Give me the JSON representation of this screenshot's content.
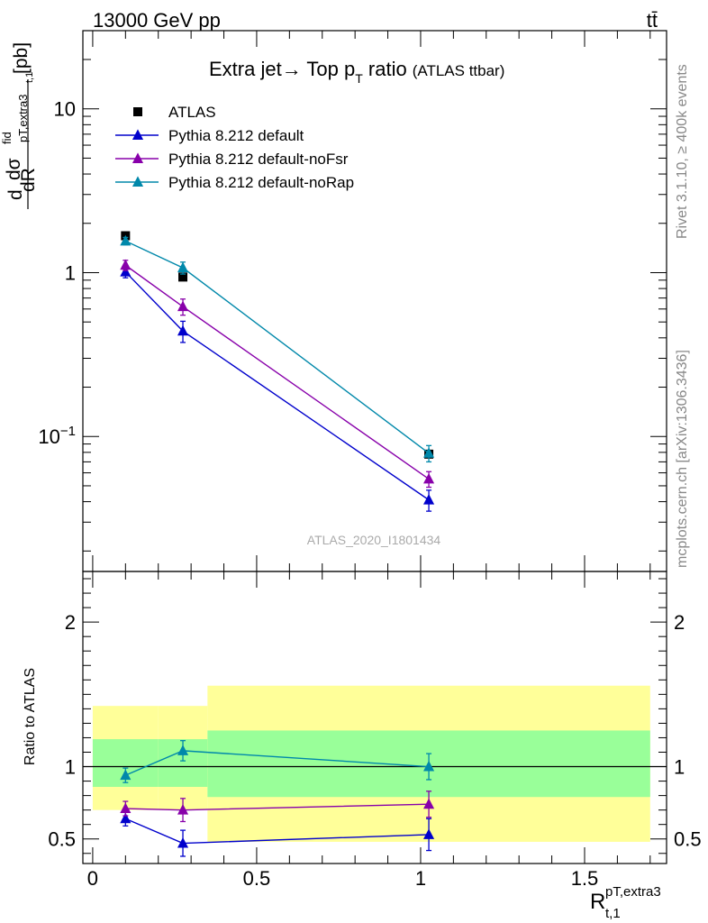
{
  "header": {
    "left": "13000 GeV pp",
    "right": "tt̄"
  },
  "side_labels": {
    "rivet": "Rivet 3.1.10, ≥ 400k events",
    "mcplots": "mcplots.cern.ch [arXiv:1306.3436]"
  },
  "chart_data": [
    {
      "type": "line",
      "panel": "main",
      "title": "Extra jet→ Top p",
      "title_sub": "T",
      "title_tail": " ratio",
      "title_suffix": "(ATLAS ttbar)",
      "watermark": "ATLAS_2020_I1801434",
      "ylabel": "dσ/dR [pb]",
      "ylabel_parts": {
        "d": "d",
        "sigma": "dσ",
        "fid": "fid",
        "sub": "pT,extra3",
        "sub2": "t,1",
        "unit": "[pb]",
        "dR": "dR"
      },
      "yscale": "log",
      "ylim": [
        0.015,
        30
      ],
      "xlim": [
        -0.03,
        1.75
      ],
      "yticks": [
        {
          "value": 10,
          "label": "10",
          "sup": ""
        },
        {
          "value": 1,
          "label": "1",
          "sup": ""
        },
        {
          "value": 0.1,
          "label": "10",
          "sup": "−1"
        }
      ],
      "series": [
        {
          "name": "ATLAS",
          "color": "#000000",
          "marker": "square",
          "x": [
            0.1,
            0.275,
            1.025
          ],
          "y": [
            1.68,
            0.94,
            0.078
          ],
          "err": [
            0.0,
            0.0,
            0.0
          ]
        },
        {
          "name": "Pythia 8.212 default",
          "color": "#0000cc",
          "marker": "triangle",
          "x": [
            0.1,
            0.275,
            1.025
          ],
          "y": [
            1.01,
            0.44,
            0.041
          ],
          "err": [
            0.08,
            0.065,
            0.006
          ]
        },
        {
          "name": "Pythia 8.212 default-noFsr",
          "color": "#8800aa",
          "marker": "triangle",
          "x": [
            0.1,
            0.275,
            1.025
          ],
          "y": [
            1.11,
            0.62,
            0.055
          ],
          "err": [
            0.08,
            0.07,
            0.006
          ]
        },
        {
          "name": "Pythia 8.212 default-noRap",
          "color": "#0088aa",
          "marker": "triangle",
          "x": [
            0.1,
            0.275,
            1.025
          ],
          "y": [
            1.56,
            1.07,
            0.079
          ],
          "err": [
            0.08,
            0.09,
            0.009
          ]
        }
      ]
    },
    {
      "type": "line",
      "panel": "ratio",
      "ylabel": "Ratio to ATLAS",
      "xlabel": "R",
      "xlabel_sup": "pT,extra3",
      "xlabel_sub": "t,1",
      "xlim": [
        -0.03,
        1.75
      ],
      "ylim": [
        0.33,
        2.35
      ],
      "xticks": [
        {
          "value": 0,
          "label": "0"
        },
        {
          "value": 0.5,
          "label": "0.5"
        },
        {
          "value": 1,
          "label": "1"
        },
        {
          "value": 1.5,
          "label": "1.5"
        }
      ],
      "yticks": [
        {
          "value": 0.5,
          "label": "0.5"
        },
        {
          "value": 1,
          "label": "1"
        },
        {
          "value": 2,
          "label": "2"
        }
      ],
      "bands": [
        {
          "x0": 0.0,
          "x1": 0.2,
          "yellow": [
            0.7,
            1.42
          ],
          "green": [
            0.86,
            1.19
          ]
        },
        {
          "x0": 0.2,
          "x1": 0.35,
          "yellow": [
            0.7,
            1.42
          ],
          "green": [
            0.86,
            1.19
          ]
        },
        {
          "x0": 0.35,
          "x1": 1.7,
          "yellow": [
            0.48,
            1.56
          ],
          "green": [
            0.79,
            1.25
          ]
        }
      ],
      "series": [
        {
          "name": "Pythia 8.212 default",
          "color": "#0000cc",
          "x": [
            0.1,
            0.275,
            1.025
          ],
          "y": [
            0.64,
            0.47,
            0.53
          ],
          "err": [
            0.05,
            0.09,
            0.11
          ]
        },
        {
          "name": "Pythia 8.212 default-noFsr",
          "color": "#8800aa",
          "x": [
            0.1,
            0.275,
            1.025
          ],
          "y": [
            0.71,
            0.7,
            0.74
          ],
          "err": [
            0.05,
            0.08,
            0.09
          ]
        },
        {
          "name": "Pythia 8.212 default-noRap",
          "color": "#0088aa",
          "x": [
            0.1,
            0.275,
            1.025
          ],
          "y": [
            0.94,
            1.11,
            1.0
          ],
          "err": [
            0.05,
            0.07,
            0.09
          ]
        }
      ]
    }
  ]
}
